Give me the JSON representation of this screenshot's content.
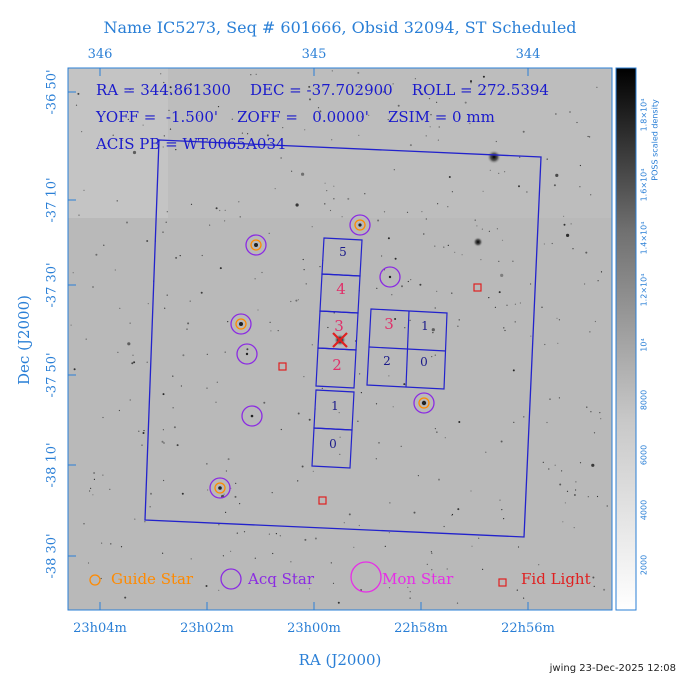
{
  "title": "Name IC5273, Seq # 601666, Obsid 32094, ST Scheduled",
  "top_axis_ticks": [
    "346",
    "345",
    "344"
  ],
  "bottom_axis_ticks": [
    "23h04m",
    "23h02m",
    "23h00m",
    "22h58m",
    "22h56m"
  ],
  "x_axis_label": "RA (J2000)",
  "y_axis_label": "Dec (J2000)",
  "y_axis_ticks": [
    "-36 50'",
    "-37 10'",
    "-37 30'",
    "-37 50'",
    "-38 10'",
    "-38 30'"
  ],
  "info": {
    "line1": "RA = 344.861300    DEC = -37.702900    ROLL = 272.5394",
    "line2": "YOFF =  -1.500'    ZOFF =   0.0000'    ZSIM = 0 mm",
    "line3": "ACIS PB = WT0065A034"
  },
  "ccd_labels": {
    "i_array": [
      "5",
      "4",
      "3",
      "2",
      "1",
      "0"
    ],
    "s_array": [
      "3",
      "1",
      "2",
      "0"
    ]
  },
  "legend": {
    "guide": "Guide Star",
    "acq": "Acq Star",
    "mon": "Mon Star",
    "fid": "Fid Light"
  },
  "colorbar": {
    "label": "POSS scaled density",
    "ticks": [
      "2000",
      "4000",
      "6000",
      "8000",
      "10⁴",
      "1.2×10⁴",
      "1.4×10⁴",
      "1.6×10⁴",
      "1.8×10⁴"
    ]
  },
  "colors": {
    "axis": "#2a7fd6",
    "frame": "#2222cc",
    "guide": "#ff8a00",
    "acq": "#8b2be2",
    "mon": "#e62ee6",
    "fid": "#e02020",
    "ccd_pink": "#e0306a"
  },
  "stamp": "jwing 23-Dec-2025 12:08"
}
